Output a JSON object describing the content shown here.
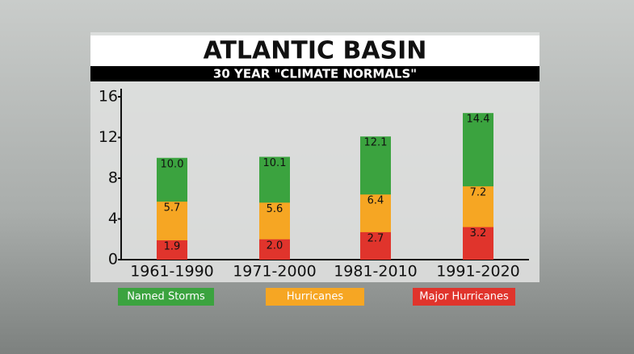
{
  "chart_data": {
    "type": "bar",
    "title": "ATLANTIC BASIN",
    "subtitle": "30 YEAR \"CLIMATE NORMALS\"",
    "categories": [
      "1961-1990",
      "1971-2000",
      "1981-2010",
      "1991-2020"
    ],
    "series": [
      {
        "name": "Named Storms",
        "color": "#3ba33f",
        "values": [
          10.0,
          10.1,
          12.1,
          14.4
        ],
        "value_labels": [
          "10.0",
          "10.1",
          "12.1",
          "14.4"
        ]
      },
      {
        "name": "Hurricanes",
        "color": "#f6a623",
        "values": [
          5.7,
          5.6,
          6.4,
          7.2
        ],
        "value_labels": [
          "5.7",
          "5.6",
          "6.4",
          "7.2"
        ]
      },
      {
        "name": "Major Hurricanes",
        "color": "#e0342c",
        "values": [
          1.9,
          2.0,
          2.7,
          3.2
        ],
        "value_labels": [
          "1.9",
          "2.0",
          "2.7",
          "3.2"
        ]
      }
    ],
    "ylim": [
      0,
      16
    ],
    "yticks": [
      0,
      4,
      8,
      12,
      16
    ]
  }
}
